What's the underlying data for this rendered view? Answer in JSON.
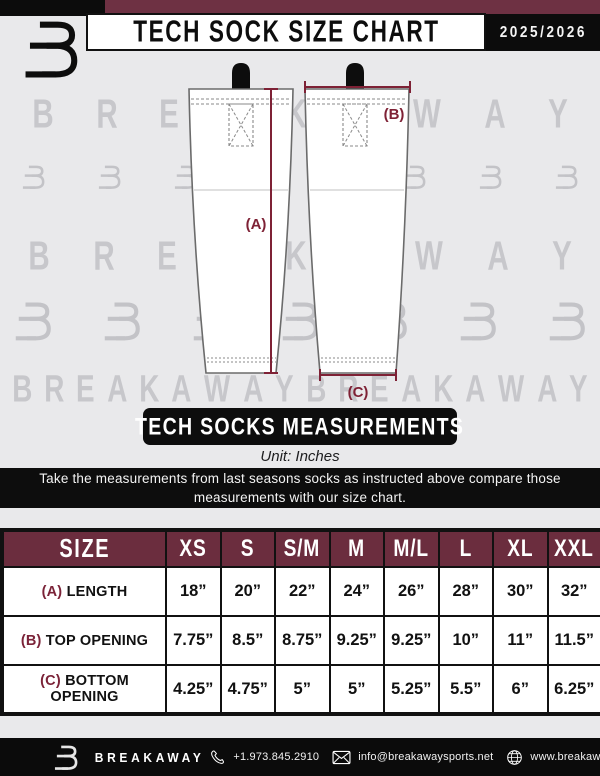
{
  "header": {
    "title": "TECH SOCK SIZE CHART",
    "season": "2025/2026",
    "logo": "breakaway-monogram"
  },
  "colors": {
    "maroon_bar": "#6E3143",
    "table_header": "#6B2D3E",
    "measure_line": "#7E2135",
    "page_bg": "#e9e9eb",
    "black": "#0d0d0d",
    "watermark": "#c7c7cb"
  },
  "watermark": {
    "text": "BREAKAWAY"
  },
  "diagram": {
    "label_a": "(A)",
    "label_b": "(B)",
    "label_c": "(C)"
  },
  "measurements_banner": "TECH SOCKS MEASUREMENTS",
  "unit_note": "Unit: Inches",
  "instruction": "Take the measurements from last seasons socks as instructed above compare those measurements  with our size chart.",
  "size_table": {
    "columns": [
      "SIZE",
      "XS",
      "S",
      "S/M",
      "M",
      "M/L",
      "L",
      "XL",
      "XXL"
    ],
    "rows": [
      {
        "label_prefix": "(A)",
        "label": "LENGTH",
        "values": [
          "18”",
          "20”",
          "22”",
          "24”",
          "26”",
          "28”",
          "30”",
          "32”"
        ]
      },
      {
        "label_prefix": "(B)",
        "label": "TOP OPENING",
        "values": [
          "7.75”",
          "8.5”",
          "8.75”",
          "9.25”",
          "9.25”",
          "10”",
          "11”",
          "11.5”"
        ]
      },
      {
        "label_prefix": "(C)",
        "label": "BOTTOM OPENING",
        "values": [
          "4.25”",
          "4.75”",
          "5”",
          "5”",
          "5.25”",
          "5.5”",
          "6”",
          "6.25”"
        ]
      }
    ]
  },
  "footer": {
    "brand": "BREAKAWAY",
    "phone": "+1.973.845.2910",
    "email": "info@breakawaysports.net",
    "website": "www.breakawaysports.net"
  }
}
